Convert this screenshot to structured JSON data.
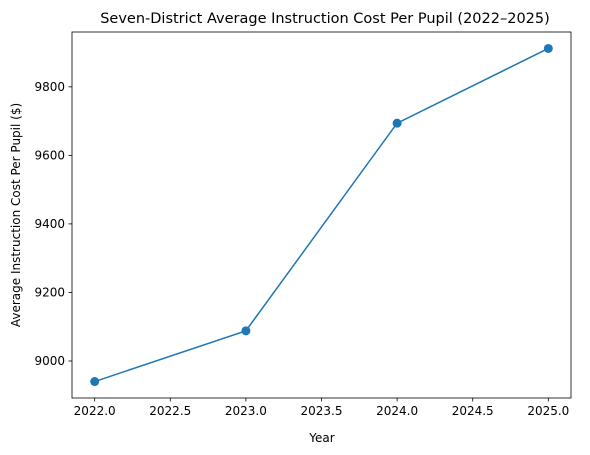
{
  "chart_data": {
    "type": "line",
    "title": "Seven-District Average Instruction Cost Per Pupil (2022–2025)",
    "xlabel": "Year",
    "ylabel": "Average Instruction Cost Per Pupil ($)",
    "x": [
      2022,
      2023,
      2024,
      2025
    ],
    "y": [
      8940,
      9088,
      9694,
      9912
    ],
    "xlim": [
      2021.85,
      2025.15
    ],
    "ylim": [
      8892,
      9960
    ],
    "xticks": [
      2022.0,
      2022.5,
      2023.0,
      2023.5,
      2024.0,
      2024.5,
      2025.0
    ],
    "xtick_labels": [
      "2022.0",
      "2022.5",
      "2023.0",
      "2023.5",
      "2024.0",
      "2024.5",
      "2025.0"
    ],
    "yticks": [
      9000,
      9200,
      9400,
      9600,
      9800
    ],
    "ytick_labels": [
      "9000",
      "9200",
      "9400",
      "9600",
      "9800"
    ],
    "grid": false,
    "line_color": "#1f77b4",
    "marker": "circle"
  }
}
